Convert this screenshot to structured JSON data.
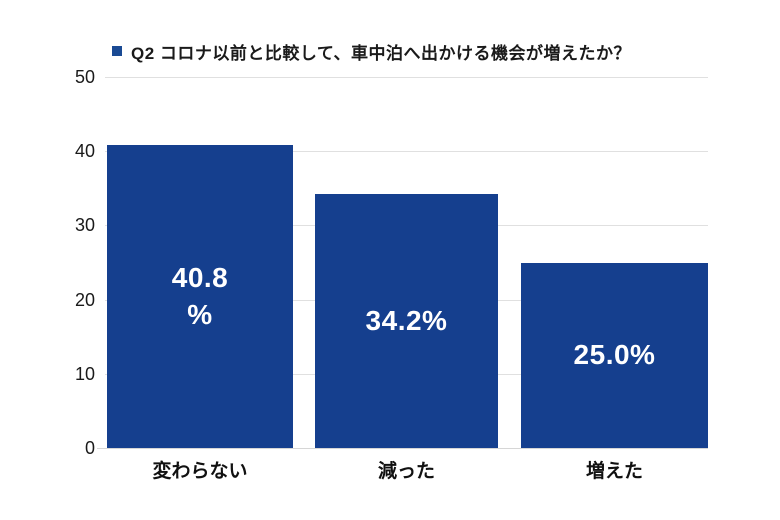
{
  "colors": {
    "bar": "#153f8e",
    "legend_marker": "#1a4a94",
    "gridline": "#e0e0e0",
    "baseline": "#d6d6d6",
    "bar_label_text": "#ffffff",
    "axis_text": "#1a1a1a"
  },
  "chart_data": {
    "type": "bar",
    "title": "Q2 コロナ以前と比較して、車中泊へ出かける機会が増えたか？",
    "categories": [
      "変わらない",
      "減った",
      "増えた"
    ],
    "values": [
      40.8,
      34.2,
      25.0
    ],
    "value_labels": [
      "40.8\n%",
      "34.2%",
      "25.0%"
    ],
    "xlabel": "",
    "ylabel": "",
    "ylim": [
      0,
      50
    ],
    "y_ticks": [
      0,
      10,
      20,
      30,
      40,
      50
    ],
    "grid": true,
    "legend_position": "top",
    "legend_entries": [
      "Q2 コロナ以前と比較して、車中泊へ出かける機会が増えたか？"
    ]
  }
}
